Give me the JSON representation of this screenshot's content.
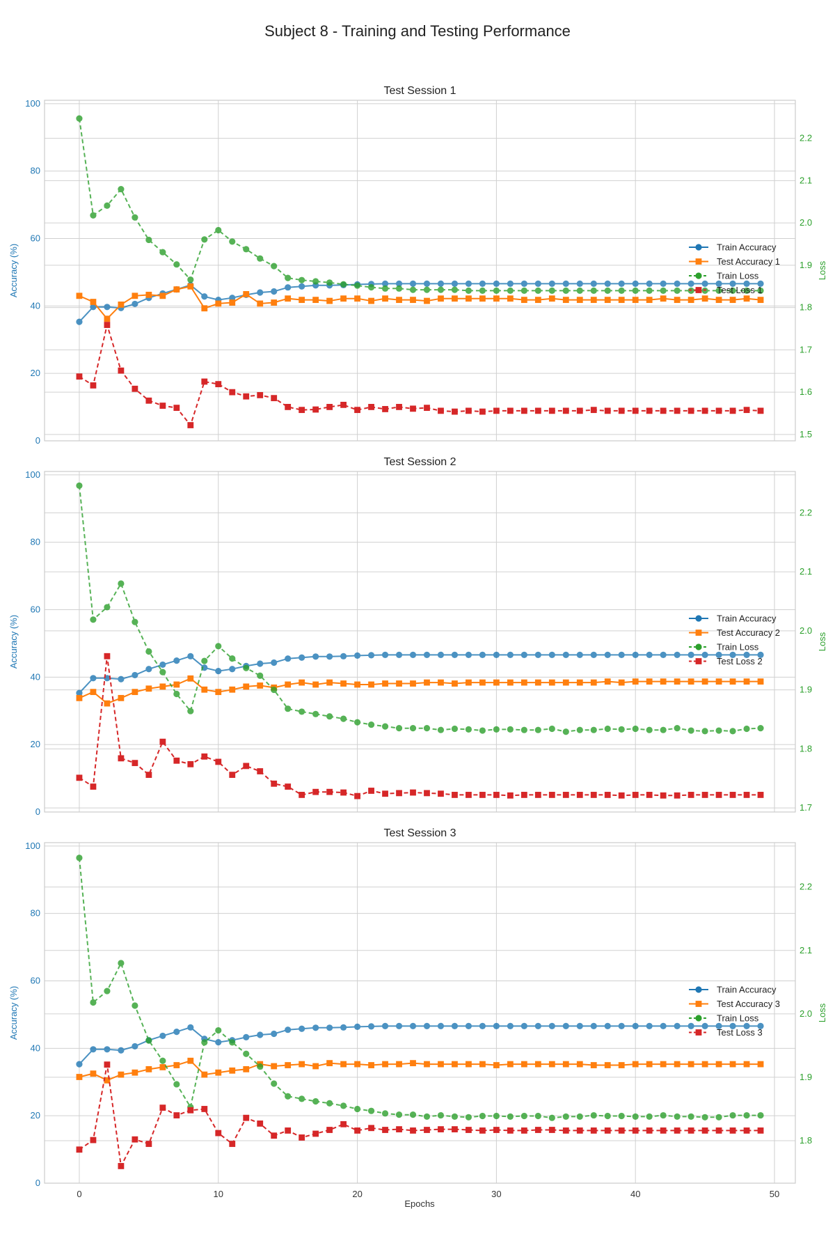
{
  "chart_data": {
    "type": "line",
    "suptitle": "Subject 8 - Training and Testing Performance",
    "xlabel": "Epochs",
    "ylabel_left": "Accuracy (%)",
    "ylabel_right": "Loss",
    "x_ticks": [
      0,
      10,
      20,
      30,
      40,
      50
    ],
    "xlim": [
      -2.5,
      51.5
    ],
    "colors": {
      "train_acc": "#1f77b4",
      "test_acc": "#ff7f0e",
      "train_loss": "#2ca02c",
      "test_loss": "#d62728",
      "grid": "#d0d0d0",
      "frame": "#cccccc"
    },
    "panels": [
      {
        "title": "Test Session 1",
        "acc_ticks": [
          0,
          20,
          40,
          60,
          80,
          100
        ],
        "acc_lim": [
          0,
          101
        ],
        "loss_ticks": [
          1.5,
          1.6,
          1.7,
          1.8,
          1.9,
          2.0,
          2.1,
          2.2
        ],
        "loss_lim": [
          1.485,
          2.29
        ],
        "legend": [
          "Train Accuracy",
          "Test Accuracy 1",
          "Train Loss",
          "Test Loss 1"
        ],
        "series": {
          "train_acc": [
            35.3,
            39.7,
            39.7,
            39.4,
            40.6,
            42.4,
            43.7,
            44.9,
            46.2,
            42.8,
            41.8,
            42.4,
            43.3,
            44,
            44.3,
            45.5,
            45.8,
            46.1,
            46.1,
            46.2,
            46.4,
            46.5,
            46.6,
            46.6,
            46.6,
            46.6,
            46.6,
            46.6,
            46.6,
            46.6,
            46.6,
            46.6,
            46.6,
            46.6,
            46.6,
            46.6,
            46.6,
            46.6,
            46.6,
            46.6,
            46.6,
            46.6,
            46.6,
            46.6,
            46.6,
            46.6,
            46.6,
            46.6,
            46.6,
            46.6
          ],
          "test_acc": [
            43,
            41.2,
            36.2,
            40.4,
            43,
            43.3,
            43,
            44.9,
            45.8,
            39.3,
            40.7,
            41,
            43.5,
            40.7,
            41,
            42.2,
            41.8,
            41.8,
            41.5,
            42.2,
            42.2,
            41.5,
            42.2,
            41.8,
            41.8,
            41.5,
            42.2,
            42.2,
            42.2,
            42.2,
            42.2,
            42.2,
            41.8,
            41.8,
            42.2,
            41.8,
            41.8,
            41.8,
            41.8,
            41.8,
            41.8,
            41.8,
            42.2,
            41.8,
            41.8,
            42.2,
            41.8,
            41.8,
            42.2,
            41.8
          ],
          "train_loss": [
            2.247,
            2.018,
            2.041,
            2.08,
            2.013,
            1.96,
            1.931,
            1.902,
            1.866,
            1.961,
            1.983,
            1.956,
            1.938,
            1.916,
            1.898,
            1.87,
            1.865,
            1.862,
            1.859,
            1.855,
            1.852,
            1.848,
            1.845,
            1.845,
            1.842,
            1.842,
            1.842,
            1.842,
            1.84,
            1.84,
            1.84,
            1.84,
            1.84,
            1.84,
            1.84,
            1.84,
            1.84,
            1.84,
            1.84,
            1.84,
            1.84,
            1.84,
            1.84,
            1.84,
            1.84,
            1.84,
            1.84,
            1.84,
            1.84,
            1.84
          ],
          "test_loss": [
            1.637,
            1.616,
            1.759,
            1.651,
            1.608,
            1.58,
            1.568,
            1.563,
            1.522,
            1.625,
            1.619,
            1.6,
            1.59,
            1.593,
            1.586,
            1.565,
            1.558,
            1.559,
            1.565,
            1.57,
            1.558,
            1.565,
            1.56,
            1.565,
            1.561,
            1.563,
            1.556,
            1.554,
            1.556,
            1.554,
            1.556,
            1.556,
            1.556,
            1.556,
            1.556,
            1.556,
            1.556,
            1.558,
            1.556,
            1.556,
            1.556,
            1.556,
            1.556,
            1.556,
            1.556,
            1.556,
            1.556,
            1.556,
            1.558,
            1.556
          ]
        }
      },
      {
        "title": "Test Session 2",
        "acc_ticks": [
          0,
          20,
          40,
          60,
          80,
          100
        ],
        "acc_lim": [
          0,
          101
        ],
        "loss_ticks": [
          1.7,
          1.8,
          1.9,
          2.0,
          2.1,
          2.2
        ],
        "loss_lim": [
          1.693,
          2.27
        ],
        "legend": [
          "Train Accuracy",
          "Test Accuracy 2",
          "Train Loss",
          "Test Loss 2"
        ],
        "series": {
          "train_acc": [
            35.3,
            39.7,
            39.7,
            39.4,
            40.6,
            42.4,
            43.7,
            44.9,
            46.2,
            42.8,
            41.8,
            42.4,
            43.3,
            44,
            44.3,
            45.5,
            45.8,
            46.1,
            46.1,
            46.2,
            46.4,
            46.5,
            46.6,
            46.6,
            46.6,
            46.6,
            46.6,
            46.6,
            46.6,
            46.6,
            46.6,
            46.6,
            46.6,
            46.6,
            46.6,
            46.6,
            46.6,
            46.6,
            46.6,
            46.6,
            46.6,
            46.6,
            46.6,
            46.6,
            46.6,
            46.6,
            46.6,
            46.6,
            46.6,
            46.6
          ],
          "test_acc": [
            33.8,
            35.6,
            32.2,
            33.8,
            35.6,
            36.6,
            37.2,
            37.8,
            39.6,
            36.3,
            35.6,
            36.3,
            37.2,
            37.5,
            36.9,
            37.8,
            38.4,
            37.8,
            38.4,
            38.1,
            37.8,
            37.8,
            38.1,
            38.1,
            38.1,
            38.4,
            38.4,
            38.1,
            38.4,
            38.4,
            38.4,
            38.4,
            38.4,
            38.4,
            38.4,
            38.4,
            38.4,
            38.4,
            38.7,
            38.4,
            38.7,
            38.7,
            38.7,
            38.7,
            38.7,
            38.7,
            38.7,
            38.7,
            38.7,
            38.7
          ],
          "train_loss": [
            2.246,
            2.019,
            2.04,
            2.08,
            2.015,
            1.965,
            1.93,
            1.893,
            1.864,
            1.949,
            1.974,
            1.953,
            1.937,
            1.924,
            1.9,
            1.868,
            1.863,
            1.859,
            1.855,
            1.851,
            1.845,
            1.841,
            1.838,
            1.835,
            1.835,
            1.835,
            1.832,
            1.834,
            1.833,
            1.831,
            1.833,
            1.833,
            1.832,
            1.832,
            1.834,
            1.829,
            1.832,
            1.832,
            1.834,
            1.833,
            1.834,
            1.832,
            1.832,
            1.835,
            1.831,
            1.83,
            1.831,
            1.83,
            1.834,
            1.835
          ],
          "test_loss": [
            1.751,
            1.736,
            1.957,
            1.784,
            1.776,
            1.756,
            1.812,
            1.78,
            1.774,
            1.787,
            1.778,
            1.756,
            1.771,
            1.762,
            1.741,
            1.736,
            1.722,
            1.727,
            1.727,
            1.726,
            1.72,
            1.729,
            1.724,
            1.725,
            1.726,
            1.725,
            1.724,
            1.722,
            1.722,
            1.722,
            1.722,
            1.721,
            1.722,
            1.722,
            1.722,
            1.722,
            1.722,
            1.722,
            1.722,
            1.721,
            1.722,
            1.722,
            1.721,
            1.721,
            1.722,
            1.722,
            1.722,
            1.722,
            1.722,
            1.722
          ]
        }
      },
      {
        "title": "Test Session 3",
        "acc_ticks": [
          0,
          20,
          40,
          60,
          80,
          100
        ],
        "acc_lim": [
          0,
          101
        ],
        "loss_ticks": [
          1.8,
          1.9,
          2.0,
          2.1,
          2.2
        ],
        "loss_lim": [
          1.733,
          2.27
        ],
        "legend": [
          "Train Accuracy",
          "Test Accuracy 3",
          "Train Loss",
          "Test Loss 3"
        ],
        "series": {
          "train_acc": [
            35.3,
            39.7,
            39.7,
            39.4,
            40.6,
            42.4,
            43.7,
            44.9,
            46.2,
            42.8,
            41.8,
            42.4,
            43.3,
            44,
            44.3,
            45.5,
            45.8,
            46.1,
            46.1,
            46.2,
            46.4,
            46.5,
            46.6,
            46.6,
            46.6,
            46.6,
            46.6,
            46.6,
            46.6,
            46.6,
            46.6,
            46.6,
            46.6,
            46.6,
            46.6,
            46.6,
            46.6,
            46.6,
            46.6,
            46.6,
            46.6,
            46.6,
            46.6,
            46.6,
            46.6,
            46.6,
            46.6,
            46.6,
            46.6,
            46.6
          ],
          "test_acc": [
            31.5,
            32.5,
            30.5,
            32.2,
            32.8,
            33.8,
            34.4,
            35,
            36.3,
            32.2,
            32.8,
            33.4,
            33.8,
            35.3,
            34.7,
            35,
            35.3,
            34.7,
            35.6,
            35.3,
            35.3,
            35,
            35.3,
            35.3,
            35.6,
            35.3,
            35.3,
            35.3,
            35.3,
            35.3,
            35,
            35.3,
            35.3,
            35.3,
            35.3,
            35.3,
            35.3,
            35,
            35,
            35,
            35.3,
            35.3,
            35.3,
            35.3,
            35.3,
            35.3,
            35.3,
            35.3,
            35.3,
            35.3
          ],
          "train_loss": [
            2.246,
            2.018,
            2.036,
            2.08,
            2.013,
            1.958,
            1.926,
            1.889,
            1.853,
            1.955,
            1.974,
            1.955,
            1.937,
            1.917,
            1.89,
            1.87,
            1.866,
            1.862,
            1.859,
            1.855,
            1.85,
            1.847,
            1.843,
            1.841,
            1.841,
            1.838,
            1.84,
            1.838,
            1.837,
            1.839,
            1.839,
            1.838,
            1.839,
            1.839,
            1.836,
            1.838,
            1.838,
            1.84,
            1.839,
            1.839,
            1.838,
            1.838,
            1.84,
            1.838,
            1.838,
            1.837,
            1.837,
            1.84,
            1.84,
            1.84
          ],
          "test_loss": [
            1.786,
            1.801,
            1.92,
            1.76,
            1.802,
            1.795,
            1.852,
            1.84,
            1.848,
            1.85,
            1.812,
            1.795,
            1.836,
            1.827,
            1.808,
            1.816,
            1.805,
            1.811,
            1.817,
            1.826,
            1.816,
            1.82,
            1.817,
            1.818,
            1.816,
            1.817,
            1.818,
            1.818,
            1.817,
            1.816,
            1.817,
            1.816,
            1.816,
            1.817,
            1.817,
            1.816,
            1.816,
            1.816,
            1.816,
            1.816,
            1.816,
            1.816,
            1.816,
            1.816,
            1.816,
            1.816,
            1.816,
            1.816,
            1.816,
            1.816
          ]
        }
      }
    ]
  }
}
